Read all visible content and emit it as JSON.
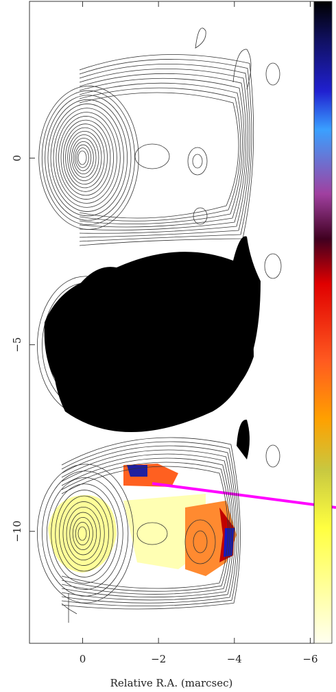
{
  "chart_data": {
    "type": "contour",
    "xlabel": "Relative R.A. (marcsec)",
    "xlim": [
      1.4,
      -6.1
    ],
    "ylim": [
      -13,
      4.2
    ],
    "xticks": [
      0,
      {
        "value": -2,
        "label": "−2"
      },
      {
        "value": -4,
        "label": "−4"
      },
      {
        "value": -6,
        "label": "−6"
      }
    ],
    "yticks": [
      0,
      {
        "value": -5,
        "label": "−5"
      },
      {
        "value": -10,
        "label": "−10"
      }
    ]
  }
}
